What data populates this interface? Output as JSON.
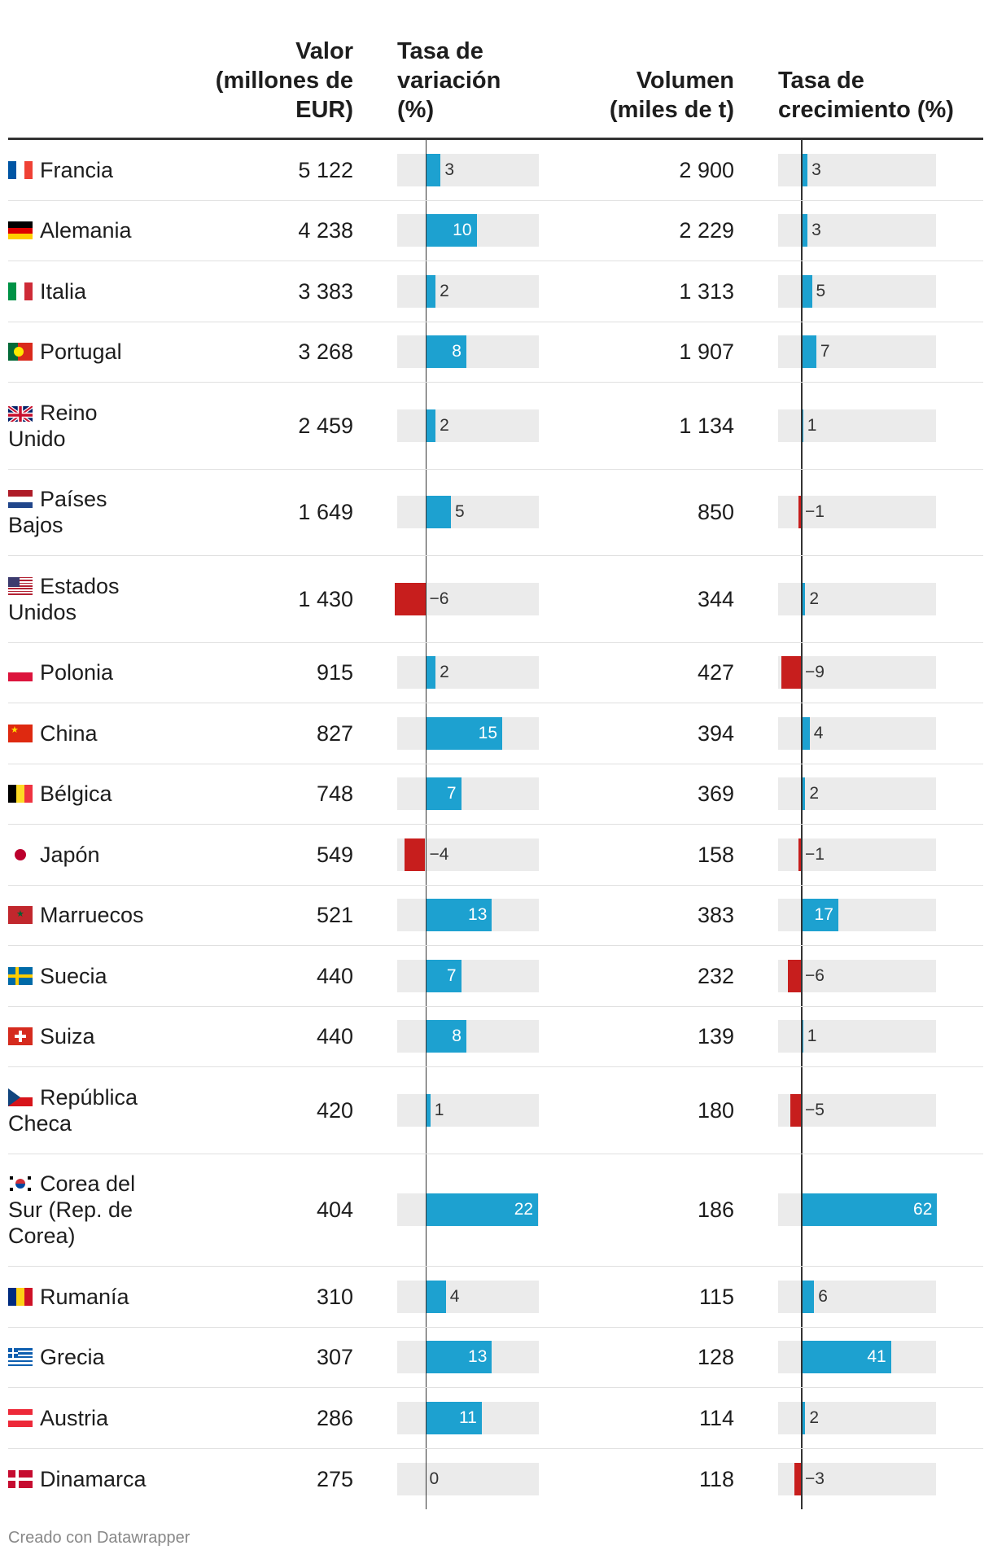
{
  "chart_data": {
    "type": "table",
    "columns": [
      {
        "key": "country",
        "label": ""
      },
      {
        "key": "valor",
        "label_lines": [
          "Valor",
          "(millones de",
          "EUR)"
        ]
      },
      {
        "key": "tasa_variacion",
        "label_lines": [
          "Tasa de",
          "variación",
          "(%)"
        ]
      },
      {
        "key": "volumen",
        "label_lines": [
          "Volumen",
          "(miles de t)"
        ]
      },
      {
        "key": "tasa_crecimiento",
        "label_lines": [
          "Tasa de",
          "crecimiento (%)"
        ]
      }
    ],
    "tasa_variacion_range": [
      -6,
      22
    ],
    "tasa_crecimiento_range": [
      -9,
      62
    ],
    "rows": [
      {
        "country_lines": [
          "Francia"
        ],
        "flag": "flag-france",
        "valor": "5 122",
        "tasa_variacion": 3,
        "volumen": "2 900",
        "tasa_crecimiento": 3
      },
      {
        "country_lines": [
          "Alemania"
        ],
        "flag": "flag-germany",
        "valor": "4 238",
        "tasa_variacion": 10,
        "volumen": "2 229",
        "tasa_crecimiento": 3
      },
      {
        "country_lines": [
          "Italia"
        ],
        "flag": "flag-italy",
        "valor": "3 383",
        "tasa_variacion": 2,
        "volumen": "1 313",
        "tasa_crecimiento": 5
      },
      {
        "country_lines": [
          "Portugal"
        ],
        "flag": "flag-portugal",
        "valor": "3 268",
        "tasa_variacion": 8,
        "volumen": "1 907",
        "tasa_crecimiento": 7
      },
      {
        "country_lines": [
          "Reino",
          "Unido"
        ],
        "flag": "flag-uk",
        "valor": "2 459",
        "tasa_variacion": 2,
        "volumen": "1 134",
        "tasa_crecimiento": 1
      },
      {
        "country_lines": [
          "Países",
          "Bajos"
        ],
        "flag": "flag-netherlands",
        "valor": "1 649",
        "tasa_variacion": 5,
        "volumen": "850",
        "tasa_crecimiento": -1
      },
      {
        "country_lines": [
          "Estados",
          "Unidos"
        ],
        "flag": "flag-usa",
        "valor": "1 430",
        "tasa_variacion": -6,
        "volumen": "344",
        "tasa_crecimiento": 2
      },
      {
        "country_lines": [
          "Polonia"
        ],
        "flag": "flag-poland",
        "valor": "915",
        "tasa_variacion": 2,
        "volumen": "427",
        "tasa_crecimiento": -9
      },
      {
        "country_lines": [
          "China"
        ],
        "flag": "flag-china",
        "valor": "827",
        "tasa_variacion": 15,
        "volumen": "394",
        "tasa_crecimiento": 4
      },
      {
        "country_lines": [
          "Bélgica"
        ],
        "flag": "flag-belgium",
        "valor": "748",
        "tasa_variacion": 7,
        "volumen": "369",
        "tasa_crecimiento": 2
      },
      {
        "country_lines": [
          "Japón"
        ],
        "flag": "flag-japan",
        "valor": "549",
        "tasa_variacion": -4,
        "volumen": "158",
        "tasa_crecimiento": -1
      },
      {
        "country_lines": [
          "Marruecos"
        ],
        "flag": "flag-morocco",
        "valor": "521",
        "tasa_variacion": 13,
        "volumen": "383",
        "tasa_crecimiento": 17
      },
      {
        "country_lines": [
          "Suecia"
        ],
        "flag": "flag-sweden",
        "valor": "440",
        "tasa_variacion": 7,
        "volumen": "232",
        "tasa_crecimiento": -6
      },
      {
        "country_lines": [
          "Suiza"
        ],
        "flag": "flag-switzerland",
        "valor": "440",
        "tasa_variacion": 8,
        "volumen": "139",
        "tasa_crecimiento": 1
      },
      {
        "country_lines": [
          "República",
          "Checa"
        ],
        "flag": "flag-czech",
        "valor": "420",
        "tasa_variacion": 1,
        "volumen": "180",
        "tasa_crecimiento": -5
      },
      {
        "country_lines": [
          "Corea del",
          "Sur (Rep. de",
          "Corea)"
        ],
        "flag": "flag-south-korea",
        "valor": "404",
        "tasa_variacion": 22,
        "volumen": "186",
        "tasa_crecimiento": 62
      },
      {
        "country_lines": [
          "Rumanía"
        ],
        "flag": "flag-romania",
        "valor": "310",
        "tasa_variacion": 4,
        "volumen": "115",
        "tasa_crecimiento": 6
      },
      {
        "country_lines": [
          "Grecia"
        ],
        "flag": "flag-greece",
        "valor": "307",
        "tasa_variacion": 13,
        "volumen": "128",
        "tasa_crecimiento": 41
      },
      {
        "country_lines": [
          "Austria"
        ],
        "flag": "flag-austria",
        "valor": "286",
        "tasa_variacion": 11,
        "volumen": "114",
        "tasa_crecimiento": 2
      },
      {
        "country_lines": [
          "Dinamarca"
        ],
        "flag": "flag-denmark",
        "valor": "275",
        "tasa_variacion": 0,
        "volumen": "118",
        "tasa_crecimiento": -3
      }
    ],
    "colors": {
      "positive": "#1da1d0",
      "negative": "#c71e1d",
      "track": "#ebebeb"
    }
  },
  "footer": {
    "credit": "Creado con Datawrapper"
  }
}
